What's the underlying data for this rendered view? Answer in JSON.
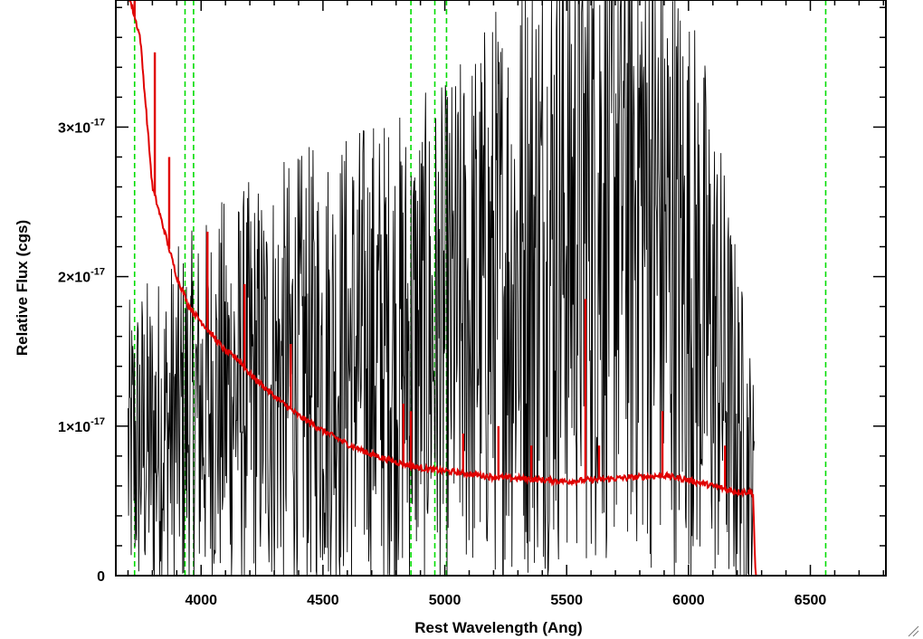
{
  "chart_data": {
    "type": "line",
    "xlabel": "Rest Wavelength (Ang)",
    "ylabel": "Relative Flux (cgs)",
    "xlim": [
      3650,
      6810
    ],
    "ylim": [
      0,
      3.85e-17
    ],
    "x_ticks": [
      {
        "value": 4000,
        "label": "4000"
      },
      {
        "value": 4500,
        "label": "4500"
      },
      {
        "value": 5000,
        "label": "5000"
      },
      {
        "value": 5500,
        "label": "5500"
      },
      {
        "value": 6000,
        "label": "6000"
      },
      {
        "value": 6500,
        "label": "6500"
      }
    ],
    "y_ticks": [
      {
        "value": 0,
        "mantissa": "0",
        "exponent": ""
      },
      {
        "value": 1e-17,
        "mantissa": "1×10",
        "exponent": "-17"
      },
      {
        "value": 2e-17,
        "mantissa": "2×10",
        "exponent": "-17"
      },
      {
        "value": 3e-17,
        "mantissa": "3×10",
        "exponent": "-17"
      }
    ],
    "reference_lines": [
      3727,
      3934,
      3969,
      4861,
      4959,
      5007,
      6563
    ],
    "series": [
      {
        "color": "#000000",
        "style": "noisy",
        "x": [
          3700,
          3750,
          3800,
          3850,
          3900,
          3950,
          4000,
          4100,
          4200,
          4300,
          4400,
          4500,
          4600,
          4700,
          4800,
          4900,
          5000,
          5100,
          5200,
          5300,
          5400,
          5500,
          5600,
          5700,
          5750,
          5800,
          5850,
          5900,
          6000,
          6100,
          6150,
          6200,
          6250,
          6270
        ],
        "y": [
          8e-18,
          9e-18,
          9e-18,
          9.5e-18,
          1e-17,
          1.05e-17,
          1.1e-17,
          1.2e-17,
          1.25e-17,
          1.3e-17,
          1.35e-17,
          1.4e-17,
          1.45e-17,
          1.5e-17,
          1.5e-17,
          1.55e-17,
          1.6e-17,
          1.75e-17,
          1.9e-17,
          2.05e-17,
          2.2e-17,
          2.35e-17,
          2.5e-17,
          2.65e-17,
          2.7e-17,
          2.6e-17,
          2.4e-17,
          2.2e-17,
          1.95e-17,
          1.6e-17,
          1.3e-17,
          1e-17,
          7e-18,
          5e-18
        ]
      },
      {
        "color": "#e00000",
        "style": "model",
        "x": [
          3700,
          3750,
          3780,
          3800,
          3850,
          3900,
          3950,
          4000,
          4050,
          4100,
          4150,
          4200,
          4300,
          4400,
          4500,
          4600,
          4700,
          4800,
          4900,
          5000,
          5100,
          5200,
          5300,
          5400,
          5500,
          5600,
          5700,
          5800,
          5900,
          6000,
          6100,
          6150,
          6200,
          6250,
          6265,
          6275,
          6810
        ],
        "y": [
          3.9e-17,
          3.6e-17,
          3e-17,
          2.6e-17,
          2.3e-17,
          2e-17,
          1.8e-17,
          1.7e-17,
          1.6e-17,
          1.5e-17,
          1.45e-17,
          1.35e-17,
          1.2e-17,
          1.07e-17,
          9.7e-18,
          8.8e-18,
          8.1e-18,
          7.6e-18,
          7.2e-18,
          7e-18,
          6.8e-18,
          6.6e-18,
          6.5e-18,
          6.4e-18,
          6.3e-18,
          6.4e-18,
          6.5e-18,
          6.6e-18,
          6.7e-18,
          6.4e-18,
          6e-18,
          5.8e-18,
          5.6e-18,
          5.6e-18,
          5.5e-18,
          0.0,
          0.0
        ]
      }
    ],
    "emission_spikes": [
      {
        "x": 3727,
        "y": 3.85e-17
      },
      {
        "x": 3810,
        "y": 3.5e-17
      },
      {
        "x": 3869,
        "y": 2.8e-17
      },
      {
        "x": 4026,
        "y": 2.3e-17
      },
      {
        "x": 4178,
        "y": 1.95e-17
      },
      {
        "x": 4368,
        "y": 1.55e-17
      },
      {
        "x": 4830,
        "y": 1.15e-17
      },
      {
        "x": 4861,
        "y": 1.1e-17
      },
      {
        "x": 5075,
        "y": 9.5e-18
      },
      {
        "x": 5220,
        "y": 1e-17
      },
      {
        "x": 5355,
        "y": 8.7e-18
      },
      {
        "x": 5577,
        "y": 1.85e-17
      },
      {
        "x": 5633,
        "y": 8.7e-18
      },
      {
        "x": 5893,
        "y": 1.1e-17
      },
      {
        "x": 6150,
        "y": 8.7e-18
      }
    ]
  }
}
